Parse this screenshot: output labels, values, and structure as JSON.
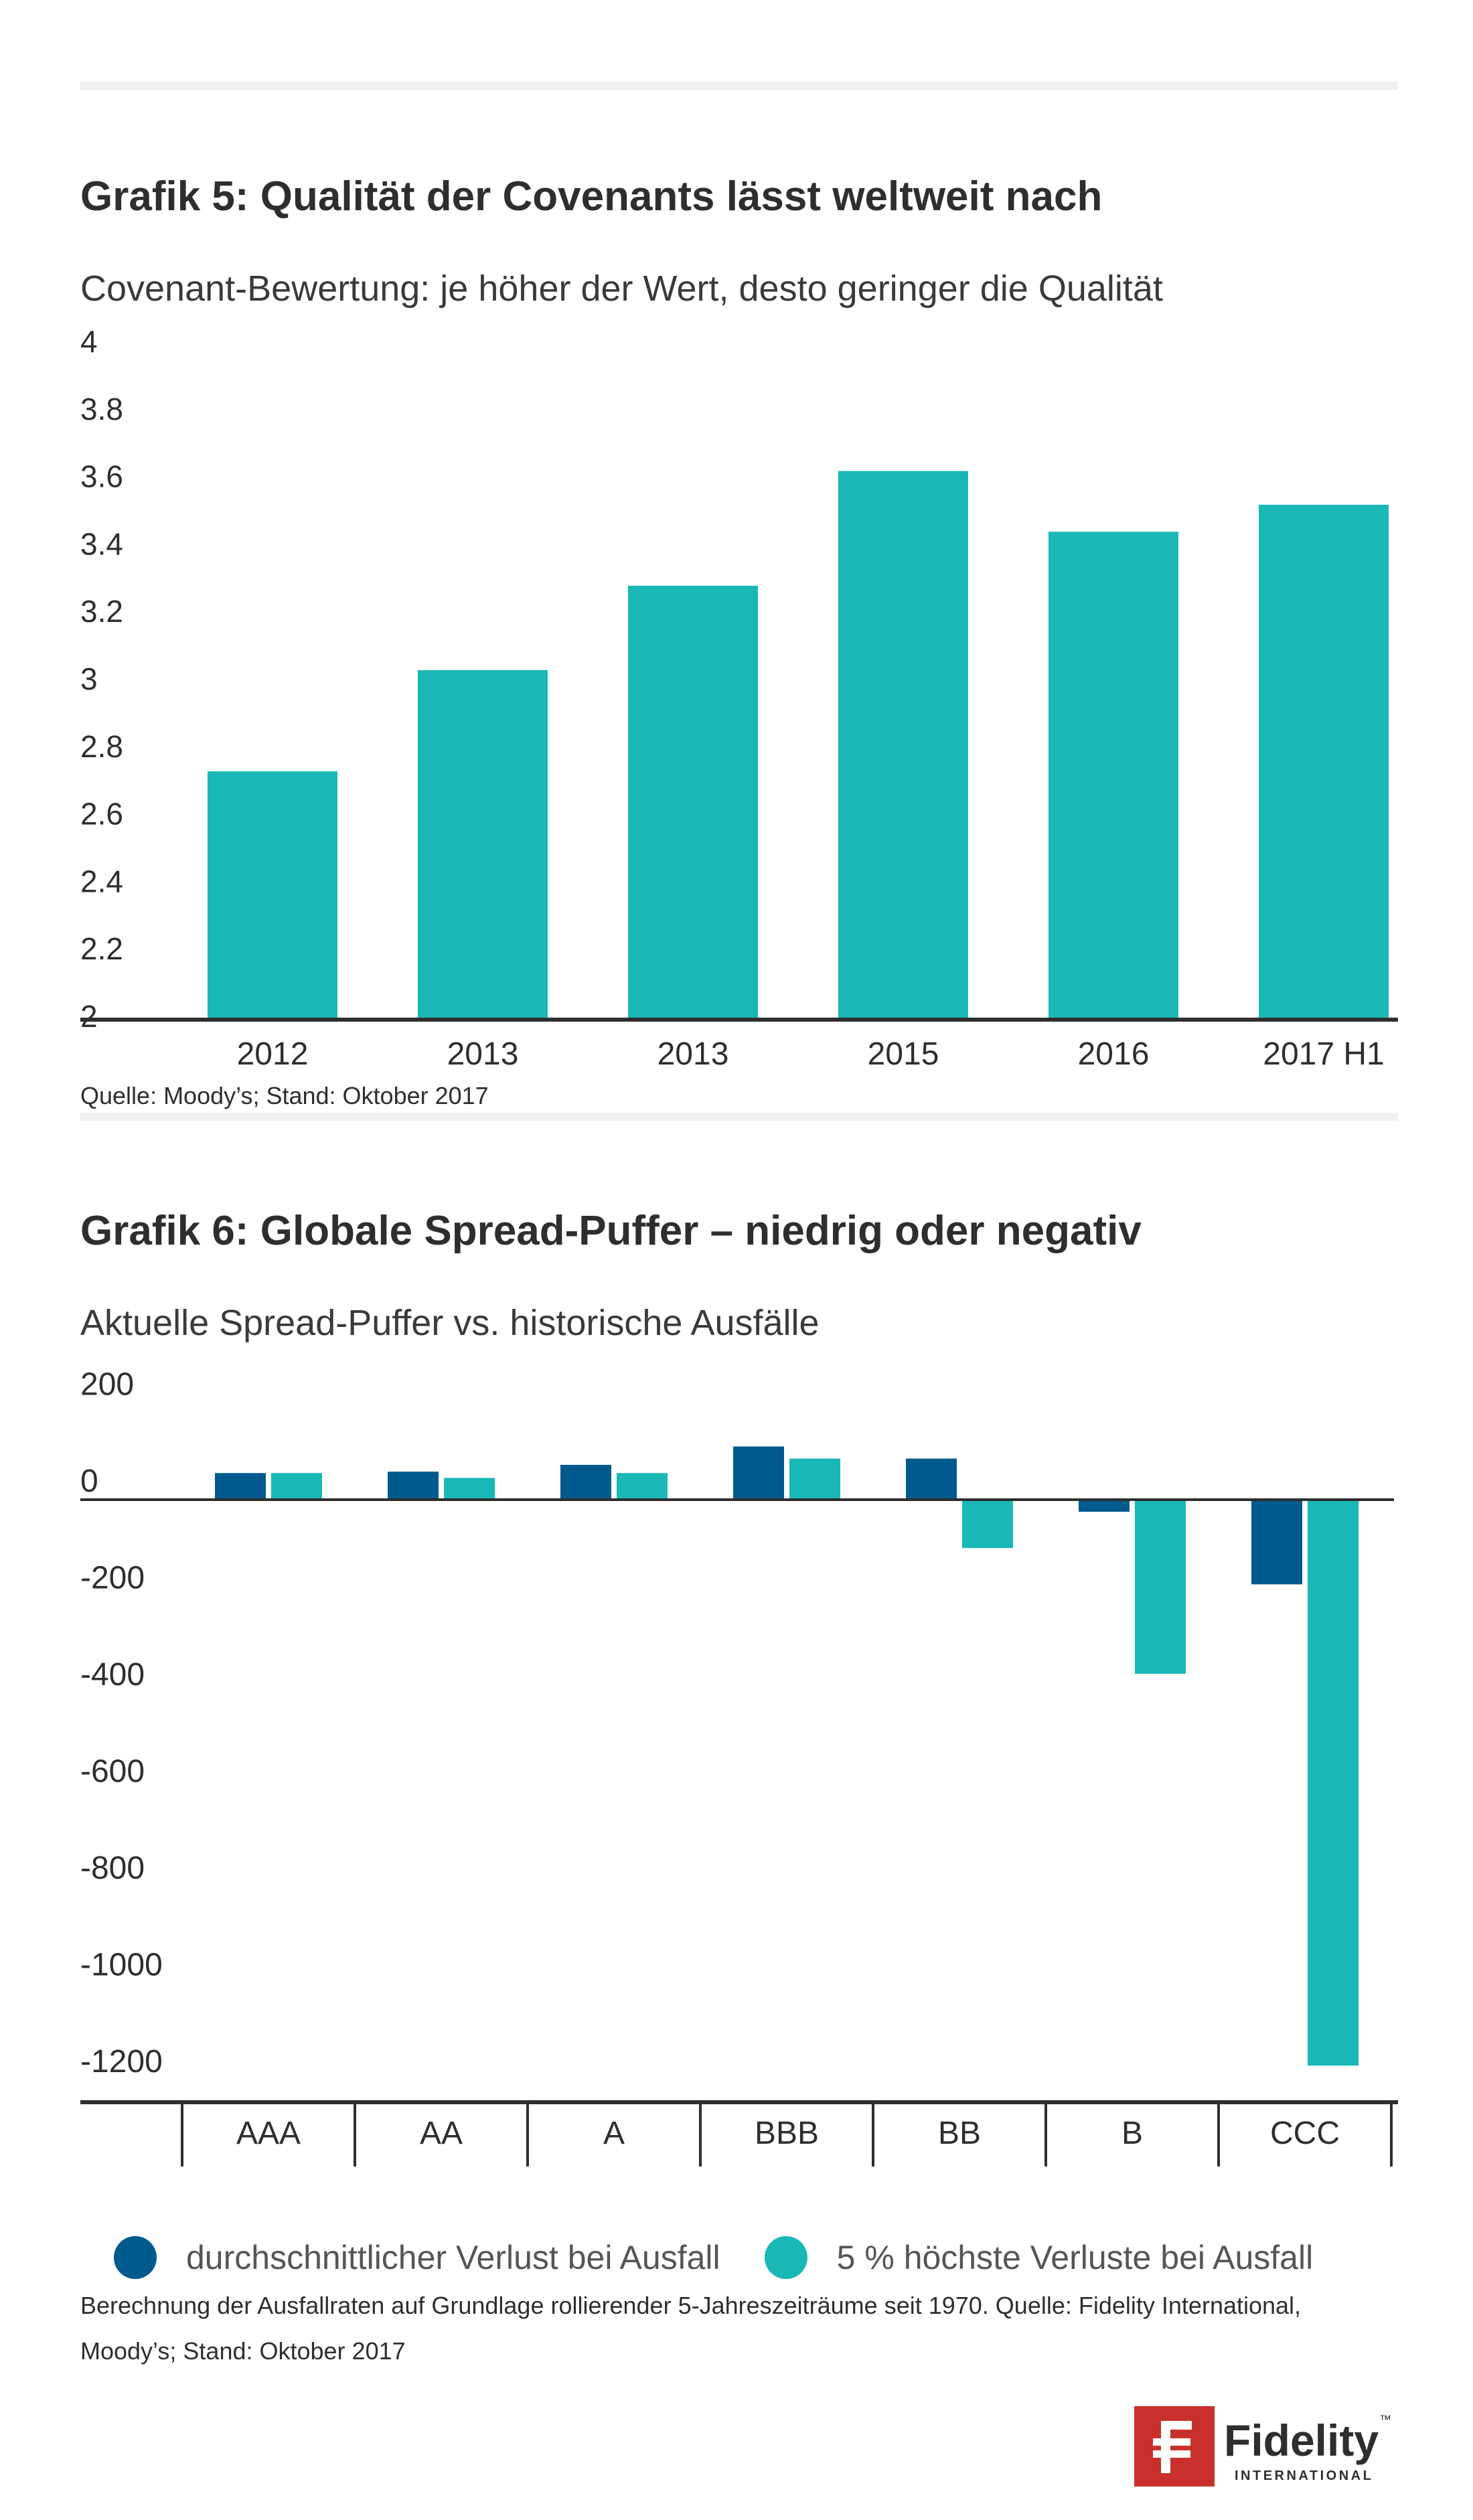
{
  "colors": {
    "teal": "#19b8b6",
    "navy": "#005a8e",
    "axis": "#2e2e2e",
    "logo_red": "#c8312b",
    "logo_navy": "#1a3a6b"
  },
  "chart5": {
    "title": "Grafik 5: Qualität der Covenants lässt weltweit nach",
    "subtitle": "Covenant-Bewertung: je höher der Wert, desto geringer die Qualität",
    "source": "Quelle: Moody’s; Stand: Oktober 2017"
  },
  "chart6": {
    "title": "Grafik 6: Globale Spread-Puffer – niedrig oder negativ",
    "subtitle": "Aktuelle Spread-Puffer vs. historische Ausfälle",
    "legend": {
      "series1": "durchschnittlicher Verlust bei Ausfall",
      "series2": "5 % höchste Verluste bei Ausfall"
    },
    "note": "Berechnung der Ausfallraten auf Grundlage rollierender 5-Jahreszeiträume seit 1970. Quelle: Fidelity International, Moody’s; Stand: Oktober 2017"
  },
  "logo": {
    "name": "Fidelity",
    "tagline": "INTERNATIONAL",
    "tm": "™"
  },
  "chart_data": [
    {
      "type": "bar",
      "title": "Grafik 5: Qualität der Covenants lässt weltweit nach",
      "ylabel": "Covenant-Bewertung: je höher der Wert, desto geringer die Qualität",
      "categories": [
        "2012",
        "2013",
        "2013",
        "2015",
        "2016",
        "2017 H1"
      ],
      "values": [
        2.73,
        3.03,
        3.28,
        3.62,
        3.44,
        3.52
      ],
      "ylim": [
        2,
        4
      ],
      "yticks": [
        "4",
        "3.8",
        "3.6",
        "3.4",
        "3.2",
        "3",
        "2.8",
        "2.6",
        "2.4",
        "2.2",
        "2"
      ],
      "grid": false
    },
    {
      "type": "bar",
      "title": "Grafik 6: Globale Spread-Puffer – niedrig oder negativ",
      "ylabel": "Aktuelle Spread-Puffer vs. historische Ausfälle",
      "categories": [
        "AAA",
        "AA",
        "A",
        "BBB",
        "BB",
        "B",
        "CCC"
      ],
      "series": [
        {
          "name": "durchschnittlicher Verlust bei Ausfall",
          "values": [
            55,
            58,
            72,
            110,
            85,
            -25,
            -175
          ]
        },
        {
          "name": "5 % höchste Verluste bei Ausfall",
          "values": [
            55,
            45,
            55,
            85,
            -100,
            -360,
            -1170
          ]
        }
      ],
      "ylim": [
        -1250,
        200
      ],
      "yticks": [
        "200",
        "0",
        "-200",
        "-400",
        "-600",
        "-800",
        "-1000",
        "-1200"
      ],
      "legend_position": "bottom",
      "grid": false
    }
  ]
}
